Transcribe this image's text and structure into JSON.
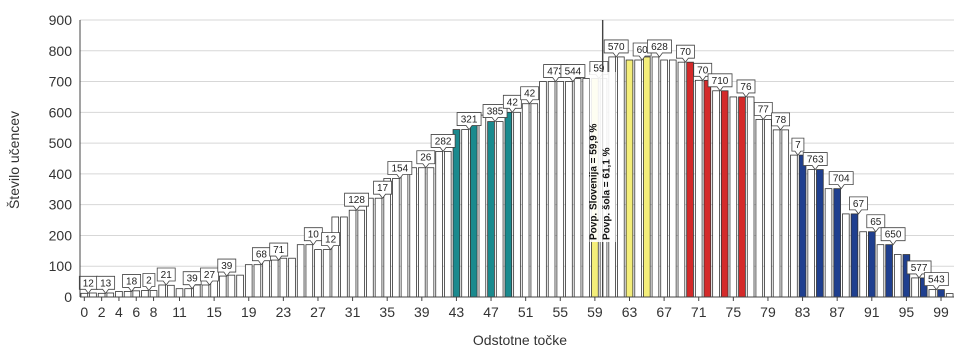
{
  "chart_data": {
    "type": "bar",
    "xlabel": "Odstotne točke",
    "ylabel": "Število učencev",
    "ylim": [
      0,
      900
    ],
    "yticks": [
      0,
      100,
      200,
      300,
      400,
      500,
      600,
      700,
      800,
      900
    ],
    "xticks": [
      "0",
      "2",
      "4",
      "6",
      "8",
      "11",
      "15",
      "19",
      "23",
      "27",
      "31",
      "35",
      "39",
      "43",
      "47",
      "51",
      "55",
      "59",
      "63",
      "67",
      "71",
      "75",
      "79",
      "83",
      "87",
      "91",
      "95",
      "99"
    ],
    "grid": "horizontal",
    "colors": {
      "default": "#ffffff",
      "teal": "#1a8a8e",
      "yellow": "#f4ee7a",
      "red": "#d42a2a",
      "navy": "#1f3f8f",
      "grid": "#d7d7d7",
      "refline": "#444444"
    },
    "annotations": [
      "Povp. Slovenija = 59,9 %",
      "Povp. šola = 61,1 %"
    ],
    "reference_x": 59.9,
    "x": [
      0,
      1,
      2,
      3,
      4,
      5,
      6,
      7,
      8,
      9,
      10,
      11,
      12,
      13,
      14,
      15,
      16,
      17,
      18,
      19,
      20,
      21,
      22,
      23,
      24,
      25,
      26,
      27,
      28,
      29,
      30,
      31,
      32,
      33,
      34,
      35,
      36,
      37,
      38,
      39,
      40,
      41,
      42,
      43,
      44,
      45,
      46,
      47,
      48,
      49,
      50,
      51,
      52,
      53,
      54,
      55,
      56,
      57,
      58,
      59,
      60,
      61,
      62,
      63,
      64,
      65,
      66,
      67,
      68,
      69,
      70,
      71,
      72,
      73,
      74,
      75,
      76,
      77,
      78,
      79,
      80,
      81,
      82,
      83,
      84,
      85,
      86,
      87,
      88,
      89,
      90,
      91,
      92,
      93,
      94,
      95,
      96,
      97,
      98,
      99,
      100
    ],
    "values": [
      12,
      13,
      12,
      13,
      18,
      18,
      20,
      21,
      21,
      39,
      38,
      27,
      27,
      39,
      39,
      66,
      68,
      71,
      71,
      105,
      105,
      120,
      120,
      126,
      126,
      170,
      170,
      154,
      154,
      260,
      260,
      282,
      282,
      321,
      321,
      385,
      385,
      420,
      420,
      420,
      420,
      473,
      473,
      544,
      544,
      591,
      591,
      570,
      570,
      600,
      600,
      628,
      628,
      700,
      700,
      700,
      700,
      710,
      710,
      710,
      710,
      780,
      780,
      770,
      770,
      780,
      780,
      770,
      770,
      763,
      763,
      704,
      704,
      670,
      670,
      650,
      650,
      650,
      577,
      577,
      543,
      543,
      461,
      461,
      414,
      414,
      352,
      352,
      270,
      270,
      212,
      212,
      170,
      170,
      138,
      138,
      62,
      62,
      24,
      24,
      11
    ],
    "bar_colors": [
      "default",
      "default",
      "default",
      "default",
      "default",
      "default",
      "default",
      "default",
      "default",
      "default",
      "default",
      "default",
      "default",
      "default",
      "default",
      "default",
      "default",
      "default",
      "default",
      "default",
      "default",
      "default",
      "default",
      "default",
      "default",
      "default",
      "default",
      "default",
      "default",
      "default",
      "default",
      "default",
      "default",
      "default",
      "default",
      "default",
      "default",
      "default",
      "default",
      "default",
      "default",
      "default",
      "default",
      "teal",
      "default",
      "teal",
      "default",
      "teal",
      "default",
      "teal",
      "default",
      "default",
      "default",
      "default",
      "default",
      "default",
      "default",
      "default",
      "default",
      "yellow",
      "default",
      "default",
      "default",
      "yellow",
      "default",
      "yellow",
      "default",
      "default",
      "default",
      "default",
      "red",
      "default",
      "red",
      "default",
      "red",
      "default",
      "red",
      "default",
      "default",
      "default",
      "default",
      "default",
      "default",
      "navy",
      "default",
      "navy",
      "default",
      "navy",
      "default",
      "navy",
      "default",
      "navy",
      "default",
      "navy",
      "default",
      "navy",
      "default",
      "navy",
      "default",
      "navy",
      "default"
    ],
    "data_labels": [
      {
        "x": 0,
        "text": "12"
      },
      {
        "x": 2,
        "text": "13"
      },
      {
        "x": 5,
        "text": "18"
      },
      {
        "x": 7,
        "text": "2"
      },
      {
        "x": 9,
        "text": "21"
      },
      {
        "x": 12,
        "text": "39"
      },
      {
        "x": 14,
        "text": "27"
      },
      {
        "x": 16,
        "text": "39"
      },
      {
        "x": 20,
        "text": "68"
      },
      {
        "x": 22,
        "text": "71"
      },
      {
        "x": 26,
        "text": "10"
      },
      {
        "x": 28,
        "text": "12"
      },
      {
        "x": 31,
        "text": "128"
      },
      {
        "x": 34,
        "text": "17"
      },
      {
        "x": 36,
        "text": "154"
      },
      {
        "x": 39,
        "text": "26"
      },
      {
        "x": 41,
        "text": "282"
      },
      {
        "x": 44,
        "text": "321"
      },
      {
        "x": 47,
        "text": "385"
      },
      {
        "x": 49,
        "text": "42"
      },
      {
        "x": 51,
        "text": "42"
      },
      {
        "x": 54,
        "text": "473"
      },
      {
        "x": 56,
        "text": "544"
      },
      {
        "x": 59,
        "text": "59"
      },
      {
        "x": 61,
        "text": "570"
      },
      {
        "x": 64,
        "text": "60"
      },
      {
        "x": 66,
        "text": "628"
      },
      {
        "x": 69,
        "text": "70"
      },
      {
        "x": 71,
        "text": "70"
      },
      {
        "x": 73,
        "text": "710"
      },
      {
        "x": 76,
        "text": "76"
      },
      {
        "x": 78,
        "text": "77"
      },
      {
        "x": 80,
        "text": "78"
      },
      {
        "x": 82,
        "text": "7"
      },
      {
        "x": 84,
        "text": "763"
      },
      {
        "x": 87,
        "text": "704"
      },
      {
        "x": 89,
        "text": "67"
      },
      {
        "x": 91,
        "text": "65"
      },
      {
        "x": 93,
        "text": "650"
      },
      {
        "x": 96,
        "text": "577"
      },
      {
        "x": 98,
        "text": "543"
      }
    ]
  }
}
